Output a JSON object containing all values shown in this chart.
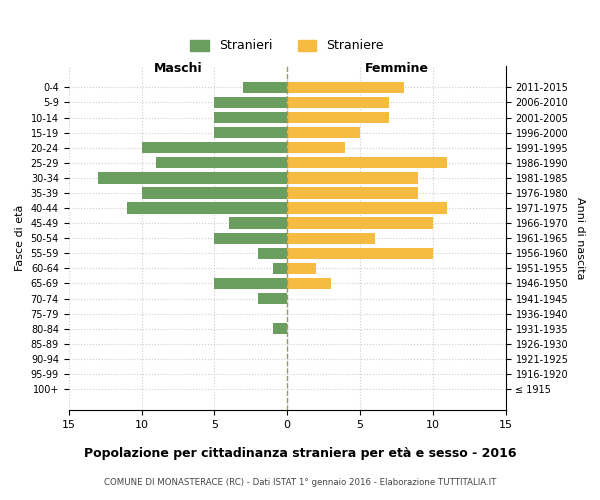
{
  "age_groups": [
    "0-4",
    "5-9",
    "10-14",
    "15-19",
    "20-24",
    "25-29",
    "30-34",
    "35-39",
    "40-44",
    "45-49",
    "50-54",
    "55-59",
    "60-64",
    "65-69",
    "70-74",
    "75-79",
    "80-84",
    "85-89",
    "90-94",
    "95-99",
    "100+"
  ],
  "birth_years": [
    "2011-2015",
    "2006-2010",
    "2001-2005",
    "1996-2000",
    "1991-1995",
    "1986-1990",
    "1981-1985",
    "1976-1980",
    "1971-1975",
    "1966-1970",
    "1961-1965",
    "1956-1960",
    "1951-1955",
    "1946-1950",
    "1941-1945",
    "1936-1940",
    "1931-1935",
    "1926-1930",
    "1921-1925",
    "1916-1920",
    "≤ 1915"
  ],
  "maschi": [
    3,
    5,
    5,
    5,
    10,
    9,
    13,
    10,
    11,
    4,
    5,
    2,
    1,
    5,
    2,
    0,
    1,
    0,
    0,
    0,
    0
  ],
  "femmine": [
    8,
    7,
    7,
    5,
    4,
    11,
    9,
    9,
    11,
    10,
    6,
    10,
    2,
    3,
    0,
    0,
    0,
    0,
    0,
    0,
    0
  ],
  "maschi_color": "#6a9e5e",
  "femmine_color": "#f5bc41",
  "background_color": "#ffffff",
  "grid_color": "#cccccc",
  "title": "Popolazione per cittadinanza straniera per età e sesso - 2016",
  "subtitle": "COMUNE DI MONASTERACE (RC) - Dati ISTAT 1° gennaio 2016 - Elaborazione TUTTITALIA.IT",
  "xlabel_left": "Maschi",
  "xlabel_right": "Femmine",
  "ylabel_left": "Fasce di età",
  "ylabel_right": "Anni di nascita",
  "legend_maschi": "Stranieri",
  "legend_femmine": "Straniere",
  "xlim": 15,
  "bar_height": 0.75,
  "dashed_line_color": "#999966"
}
